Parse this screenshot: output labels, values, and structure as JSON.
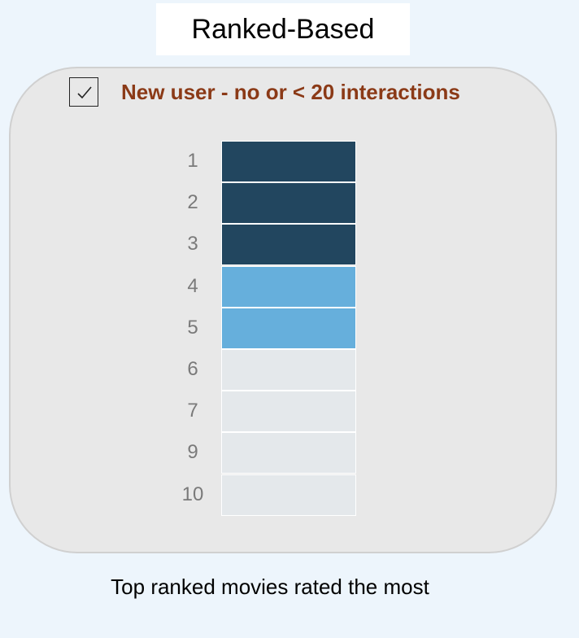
{
  "title": "Ranked-Based",
  "checkbox": {
    "checked": true,
    "label": "New user - no or < 20 interactions"
  },
  "ranking": {
    "items": [
      {
        "rank": "1",
        "level": "high"
      },
      {
        "rank": "2",
        "level": "high"
      },
      {
        "rank": "3",
        "level": "high"
      },
      {
        "rank": "4",
        "level": "medium"
      },
      {
        "rank": "5",
        "level": "medium"
      },
      {
        "rank": "6",
        "level": "low"
      },
      {
        "rank": "7",
        "level": "low"
      },
      {
        "rank": "9",
        "level": "low"
      },
      {
        "rank": "10",
        "level": "low"
      }
    ],
    "colors": {
      "high": "#22465f",
      "medium": "#66afdc",
      "low": "#e4e8eb"
    }
  },
  "caption": "Top ranked movies rated the most",
  "colors": {
    "background": "#edf5fc",
    "panel": "#e8e8e8",
    "label_accent": "#8b3a17"
  }
}
